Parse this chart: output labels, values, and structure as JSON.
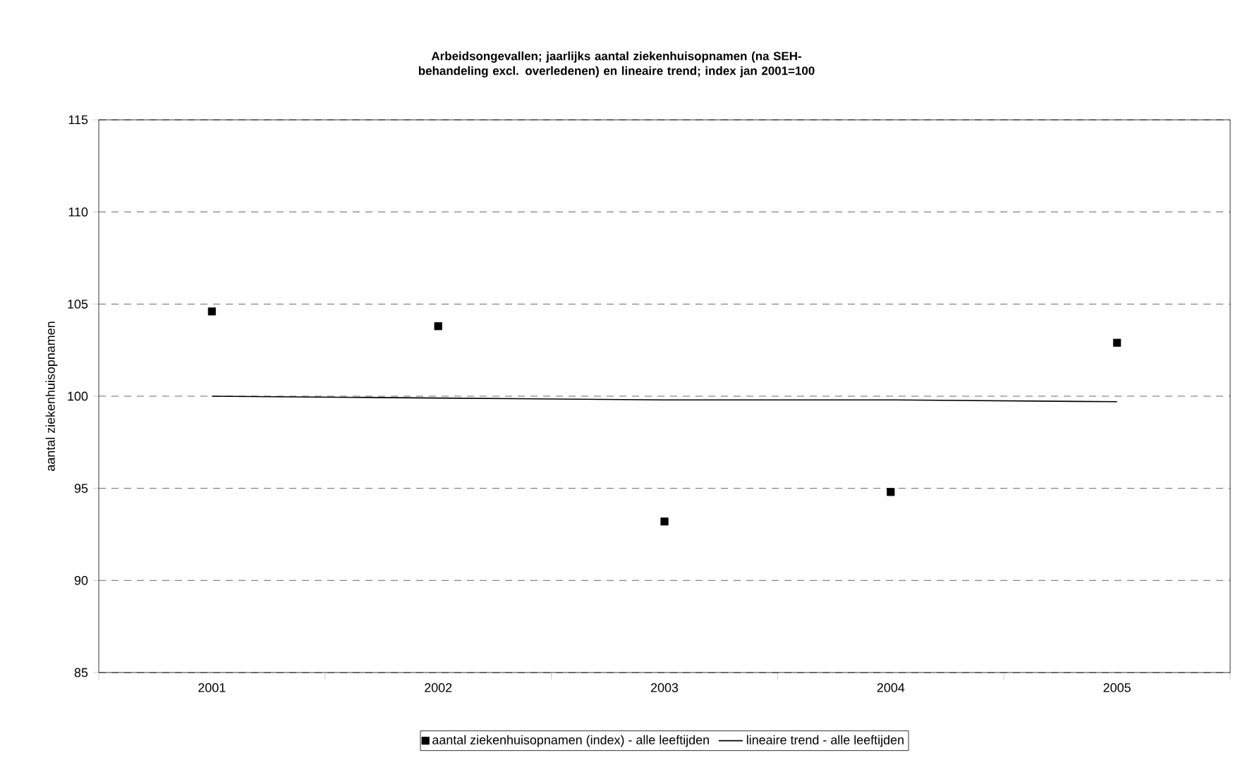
{
  "chart_data": {
    "type": "scatter",
    "title": "Arbeidsongevallen; jaarlijks aantal ziekenhuisopnamen (na SEH-behandeling excl. overledenen) en lineaire trend; index jan 2001=100",
    "ylabel": "aantal ziekenhuisopnamen",
    "categories": [
      "2001",
      "2002",
      "2003",
      "2004",
      "2005"
    ],
    "series": [
      {
        "name": "aantal ziekenhuisopnamen (index) - alle leeftijden",
        "marker": "square",
        "color": "#000000",
        "values": [
          104.6,
          103.8,
          93.2,
          94.8,
          102.9
        ]
      },
      {
        "name": "lineaire trend - alle leeftijden",
        "type": "line",
        "marker": "none",
        "line_style": "solid",
        "color": "#000000",
        "values": [
          100.0,
          99.9,
          99.8,
          99.8,
          99.7
        ]
      }
    ],
    "ylim": [
      85,
      115
    ],
    "yticks": [
      85,
      90,
      95,
      100,
      105,
      110,
      115
    ],
    "grid": "y",
    "legend": "bottom"
  }
}
